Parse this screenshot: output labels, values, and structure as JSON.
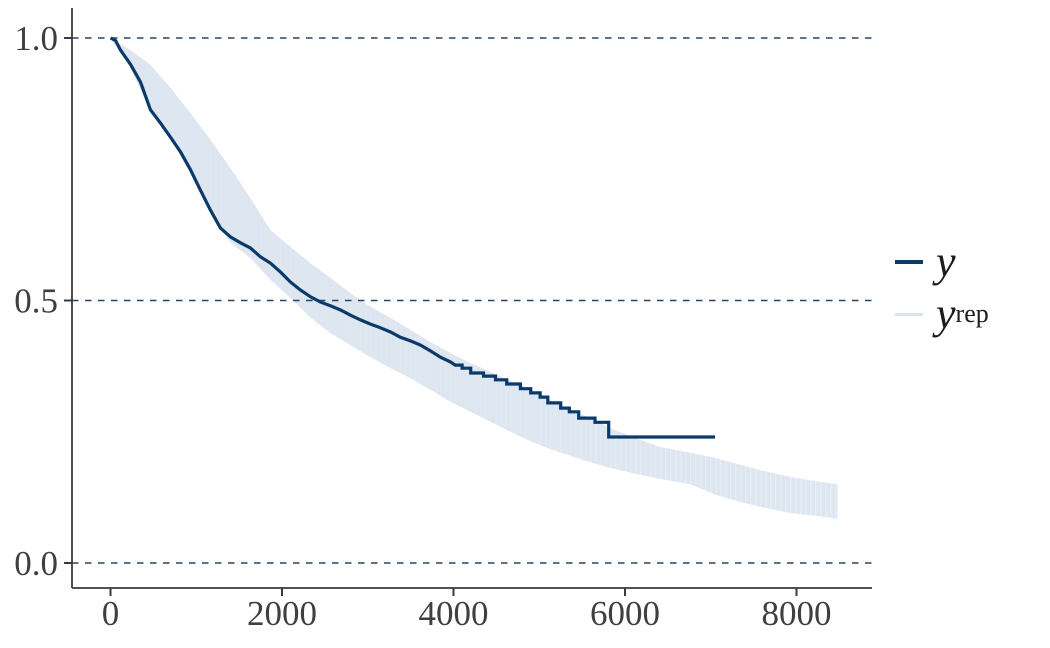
{
  "figure": {
    "background": "#ffffff",
    "axis_color": "#3a3a3a",
    "tick_label_color": "#3f3f3f",
    "gridline_color": "#234569",
    "tick_label_font_px": 35
  },
  "legend": {
    "position": "right",
    "items": [
      {
        "label": "y",
        "sup": "",
        "color": "#0b3a69"
      },
      {
        "label": "y",
        "sup": "rep",
        "color": "#d9e3ef"
      }
    ]
  },
  "chart_data": {
    "type": "line",
    "subtype": "kaplan-meier-survival-with-posterior-predictive-band",
    "title": "",
    "xlabel": "",
    "ylabel": "",
    "xlim": [
      0,
      8500
    ],
    "ylim": [
      0.0,
      1.0
    ],
    "x_ticks": [
      0,
      2000,
      4000,
      6000,
      8000
    ],
    "x_tick_labels": [
      "0",
      "2000",
      "4000",
      "6000",
      "8000"
    ],
    "y_ticks": [
      0.0,
      0.5,
      1.0
    ],
    "y_tick_labels": [
      "0.0",
      "0.5",
      "1.0"
    ],
    "grid": "horizontal-dashed-at-y-ticks",
    "legend_position": "right-center",
    "series": [
      {
        "name": "y",
        "type": "step-line",
        "color": "#0b3a69",
        "stroke_width": 3.2,
        "points": [
          [
            0,
            1.0
          ],
          [
            60,
            0.995
          ],
          [
            117,
            0.977
          ],
          [
            233,
            0.95
          ],
          [
            350,
            0.916
          ],
          [
            466,
            0.863
          ],
          [
            583,
            0.838
          ],
          [
            700,
            0.811
          ],
          [
            816,
            0.783
          ],
          [
            933,
            0.749
          ],
          [
            1049,
            0.71
          ],
          [
            1166,
            0.672
          ],
          [
            1283,
            0.638
          ],
          [
            1399,
            0.621
          ],
          [
            1516,
            0.61
          ],
          [
            1632,
            0.6
          ],
          [
            1749,
            0.583
          ],
          [
            1866,
            0.571
          ],
          [
            1982,
            0.554
          ],
          [
            2099,
            0.535
          ],
          [
            2215,
            0.52
          ],
          [
            2332,
            0.507
          ],
          [
            2449,
            0.497
          ],
          [
            2565,
            0.49
          ],
          [
            2682,
            0.482
          ],
          [
            2799,
            0.472
          ],
          [
            2915,
            0.463
          ],
          [
            3032,
            0.455
          ],
          [
            3148,
            0.448
          ],
          [
            3265,
            0.44
          ],
          [
            3381,
            0.43
          ],
          [
            3498,
            0.423
          ],
          [
            3615,
            0.415
          ],
          [
            3731,
            0.404
          ],
          [
            3848,
            0.392
          ],
          [
            3964,
            0.383
          ],
          [
            4020,
            0.377
          ],
          [
            4100,
            0.377
          ],
          [
            4100,
            0.371
          ],
          [
            4200,
            0.371
          ],
          [
            4200,
            0.362
          ],
          [
            4350,
            0.362
          ],
          [
            4350,
            0.356
          ],
          [
            4490,
            0.356
          ],
          [
            4490,
            0.349
          ],
          [
            4620,
            0.349
          ],
          [
            4620,
            0.341
          ],
          [
            4780,
            0.341
          ],
          [
            4780,
            0.332
          ],
          [
            4900,
            0.332
          ],
          [
            4900,
            0.324
          ],
          [
            5010,
            0.324
          ],
          [
            5010,
            0.316
          ],
          [
            5100,
            0.316
          ],
          [
            5100,
            0.305
          ],
          [
            5250,
            0.305
          ],
          [
            5250,
            0.295
          ],
          [
            5350,
            0.295
          ],
          [
            5350,
            0.288
          ],
          [
            5460,
            0.288
          ],
          [
            5460,
            0.276
          ],
          [
            5650,
            0.276
          ],
          [
            5650,
            0.268
          ],
          [
            5810,
            0.268
          ],
          [
            5810,
            0.24
          ],
          [
            7050,
            0.24
          ]
        ]
      },
      {
        "name": "y rep",
        "type": "band",
        "color": "#dde6f0",
        "upper": [
          [
            0,
            1.0
          ],
          [
            233,
            0.977
          ],
          [
            466,
            0.949
          ],
          [
            700,
            0.905
          ],
          [
            933,
            0.857
          ],
          [
            1166,
            0.806
          ],
          [
            1399,
            0.752
          ],
          [
            1632,
            0.695
          ],
          [
            1866,
            0.634
          ],
          [
            2099,
            0.602
          ],
          [
            2332,
            0.571
          ],
          [
            2565,
            0.543
          ],
          [
            2799,
            0.514
          ],
          [
            3032,
            0.488
          ],
          [
            3265,
            0.467
          ],
          [
            3498,
            0.444
          ],
          [
            3731,
            0.421
          ],
          [
            3964,
            0.4
          ],
          [
            4198,
            0.381
          ],
          [
            4431,
            0.364
          ],
          [
            4664,
            0.347
          ],
          [
            4898,
            0.331
          ],
          [
            5131,
            0.31
          ],
          [
            5364,
            0.293
          ],
          [
            5597,
            0.276
          ],
          [
            5830,
            0.257
          ],
          [
            6122,
            0.238
          ],
          [
            6414,
            0.221
          ],
          [
            6763,
            0.21
          ],
          [
            7055,
            0.2
          ],
          [
            7347,
            0.187
          ],
          [
            7580,
            0.177
          ],
          [
            7930,
            0.164
          ],
          [
            8221,
            0.156
          ],
          [
            8478,
            0.15
          ]
        ],
        "lower": [
          [
            0,
            1.0
          ],
          [
            233,
            0.943
          ],
          [
            466,
            0.859
          ],
          [
            700,
            0.806
          ],
          [
            933,
            0.745
          ],
          [
            1166,
            0.669
          ],
          [
            1399,
            0.61
          ],
          [
            1632,
            0.581
          ],
          [
            1866,
            0.539
          ],
          [
            2099,
            0.505
          ],
          [
            2332,
            0.467
          ],
          [
            2565,
            0.438
          ],
          [
            2799,
            0.415
          ],
          [
            3032,
            0.392
          ],
          [
            3265,
            0.371
          ],
          [
            3498,
            0.352
          ],
          [
            3731,
            0.33
          ],
          [
            3964,
            0.307
          ],
          [
            4198,
            0.288
          ],
          [
            4431,
            0.269
          ],
          [
            4664,
            0.25
          ],
          [
            4898,
            0.232
          ],
          [
            5131,
            0.217
          ],
          [
            5364,
            0.204
          ],
          [
            5597,
            0.192
          ],
          [
            5830,
            0.181
          ],
          [
            6122,
            0.17
          ],
          [
            6414,
            0.16
          ],
          [
            6763,
            0.15
          ],
          [
            7055,
            0.13
          ],
          [
            7347,
            0.116
          ],
          [
            7580,
            0.107
          ],
          [
            7930,
            0.095
          ],
          [
            8221,
            0.09
          ],
          [
            8478,
            0.084
          ]
        ]
      }
    ]
  }
}
